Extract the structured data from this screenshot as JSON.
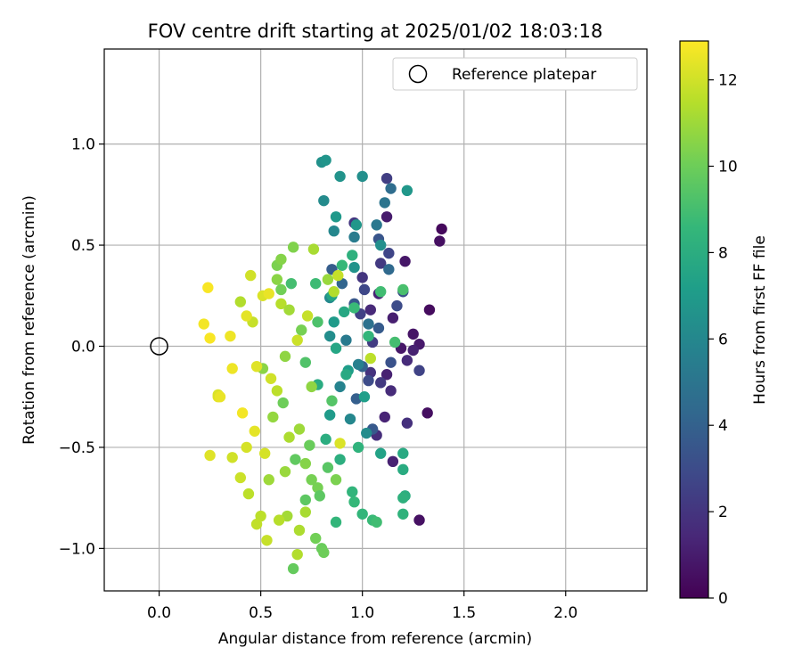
{
  "chart_data": {
    "type": "scatter",
    "title": "FOV centre drift starting at 2025/01/02 18:03:18",
    "xlabel": "Angular distance from reference (arcmin)",
    "ylabel": "Rotation from reference (arcmin)",
    "xlim": [
      -0.27,
      2.4
    ],
    "ylim": [
      -1.21,
      1.47
    ],
    "xticks": [
      0.0,
      0.5,
      1.0,
      1.5,
      2.0
    ],
    "xtick_labels": [
      "0.0",
      "0.5",
      "1.0",
      "1.5",
      "2.0"
    ],
    "yticks": [
      -1.0,
      -0.5,
      0.0,
      0.5,
      1.0
    ],
    "ytick_labels": [
      "−1.0",
      "−0.5",
      "0.0",
      "0.5",
      "1.0"
    ],
    "grid": true,
    "legend": {
      "position": "top-right",
      "entries": [
        "Reference platepar"
      ]
    },
    "reference_point": {
      "x": 0.0,
      "y": 0.0,
      "label": "Reference platepar",
      "marker": "open-circle"
    },
    "colorbar": {
      "label": "Hours from first FF file",
      "range": [
        0,
        12.9
      ],
      "ticks": [
        0,
        2,
        4,
        6,
        8,
        10,
        12
      ],
      "tick_labels": [
        "0",
        "2",
        "4",
        "6",
        "8",
        "10",
        "12"
      ],
      "colormap": "viridis",
      "stops": [
        "#440154",
        "#482878",
        "#3e4989",
        "#31688e",
        "#26828e",
        "#1f9e89",
        "#35b779",
        "#6ece58",
        "#b5de2b",
        "#fde725"
      ]
    },
    "points": [
      [
        1.39,
        0.58,
        0.3
      ],
      [
        1.38,
        0.52,
        0.5
      ],
      [
        1.33,
        0.18,
        0.4
      ],
      [
        1.32,
        -0.33,
        0.5
      ],
      [
        1.28,
        -0.86,
        0.6
      ],
      [
        1.25,
        0.06,
        0.7
      ],
      [
        1.21,
        0.42,
        0.8
      ],
      [
        1.28,
        0.01,
        0.9
      ],
      [
        1.12,
        0.64,
        1.0
      ],
      [
        1.15,
        0.14,
        1.1
      ],
      [
        1.19,
        -0.01,
        0.8
      ],
      [
        1.25,
        -0.02,
        1.2
      ],
      [
        1.22,
        -0.07,
        1.6
      ],
      [
        1.08,
        0.26,
        1.3
      ],
      [
        1.04,
        0.18,
        1.5
      ],
      [
        1.12,
        -0.14,
        1.2
      ],
      [
        1.14,
        -0.22,
        1.6
      ],
      [
        1.11,
        -0.35,
        1.3
      ],
      [
        1.07,
        -0.44,
        1.7
      ],
      [
        1.15,
        -0.57,
        1.2
      ],
      [
        1.04,
        -0.13,
        1.9
      ],
      [
        1.0,
        0.34,
        2.0
      ],
      [
        1.09,
        0.41,
        2.2
      ],
      [
        0.96,
        0.61,
        2.1
      ],
      [
        1.12,
        0.83,
        2.4
      ],
      [
        0.99,
        0.16,
        2.5
      ],
      [
        1.05,
        0.02,
        2.3
      ],
      [
        1.28,
        -0.12,
        2.6
      ],
      [
        1.09,
        -0.18,
        2.2
      ],
      [
        1.13,
        0.46,
        2.7
      ],
      [
        1.01,
        0.28,
        2.8
      ],
      [
        1.17,
        0.2,
        3.0
      ],
      [
        1.2,
        0.27,
        3.2
      ],
      [
        1.03,
        -0.17,
        3.0
      ],
      [
        1.14,
        -0.08,
        3.3
      ],
      [
        0.96,
        0.21,
        3.5
      ],
      [
        1.08,
        0.53,
        3.4
      ],
      [
        1.22,
        -0.38,
        1.8
      ],
      [
        1.05,
        -0.41,
        3.6
      ],
      [
        0.97,
        -0.26,
        3.9
      ],
      [
        0.85,
        0.38,
        3.8
      ],
      [
        1.08,
        0.09,
        3.7
      ],
      [
        1.0,
        -0.1,
        4.0
      ],
      [
        0.9,
        0.31,
        4.2
      ],
      [
        1.13,
        0.38,
        4.4
      ],
      [
        1.14,
        0.78,
        4.6
      ],
      [
        1.11,
        0.71,
        5.0
      ],
      [
        1.07,
        0.6,
        5.2
      ],
      [
        0.96,
        0.54,
        5.4
      ],
      [
        1.03,
        0.11,
        4.8
      ],
      [
        0.92,
        0.03,
        5.3
      ],
      [
        0.98,
        -0.09,
        5.6
      ],
      [
        0.89,
        -0.2,
        5.8
      ],
      [
        0.94,
        -0.36,
        6.0
      ],
      [
        1.02,
        -0.43,
        6.2
      ],
      [
        0.84,
        0.24,
        6.1
      ],
      [
        0.86,
        0.57,
        6.0
      ],
      [
        0.81,
        0.72,
        6.2
      ],
      [
        0.8,
        0.91,
        6.5
      ],
      [
        0.82,
        0.92,
        6.7
      ],
      [
        0.89,
        0.84,
        6.6
      ],
      [
        1.0,
        0.84,
        6.4
      ],
      [
        1.22,
        0.77,
        6.8
      ],
      [
        0.87,
        0.64,
        6.9
      ],
      [
        0.97,
        0.6,
        6.8
      ],
      [
        0.84,
        0.05,
        6.3
      ],
      [
        0.96,
        0.39,
        6.6
      ],
      [
        1.09,
        0.5,
        6.4
      ],
      [
        0.86,
        0.12,
        7.0
      ],
      [
        0.93,
        -0.12,
        7.1
      ],
      [
        1.01,
        -0.25,
        7.2
      ],
      [
        0.84,
        -0.34,
        7.0
      ],
      [
        1.09,
        -0.53,
        7.4
      ],
      [
        1.2,
        -0.53,
        7.8
      ],
      [
        1.2,
        -0.61,
        7.9
      ],
      [
        1.21,
        -0.74,
        8.0
      ],
      [
        1.2,
        -0.75,
        8.2
      ],
      [
        1.2,
        -0.83,
        8.3
      ],
      [
        0.95,
        -0.72,
        8.4
      ],
      [
        0.87,
        -0.87,
        8.5
      ],
      [
        1.0,
        -0.83,
        8.5
      ],
      [
        1.05,
        -0.86,
        8.7
      ],
      [
        1.07,
        -0.87,
        8.9
      ],
      [
        0.96,
        -0.77,
        8.6
      ],
      [
        0.85,
        0.25,
        7.5
      ],
      [
        0.91,
        0.17,
        7.7
      ],
      [
        0.87,
        -0.01,
        7.6
      ],
      [
        0.92,
        -0.14,
        7.8
      ],
      [
        0.78,
        -0.19,
        7.9
      ],
      [
        0.82,
        -0.46,
        8.0
      ],
      [
        0.89,
        -0.56,
        8.1
      ],
      [
        0.98,
        -0.5,
        8.3
      ],
      [
        0.95,
        0.45,
        8.2
      ],
      [
        0.9,
        0.4,
        8.6
      ],
      [
        0.96,
        0.19,
        8.7
      ],
      [
        1.03,
        0.05,
        8.5
      ],
      [
        1.09,
        0.27,
        8.9
      ],
      [
        1.16,
        0.02,
        9.0
      ],
      [
        1.2,
        0.28,
        9.1
      ],
      [
        0.77,
        0.31,
        8.8
      ],
      [
        0.65,
        0.31,
        9.0
      ],
      [
        0.78,
        0.12,
        9.2
      ],
      [
        0.72,
        -0.08,
        9.3
      ],
      [
        0.85,
        -0.27,
        9.4
      ],
      [
        0.83,
        -0.6,
        9.5
      ],
      [
        0.72,
        -0.76,
        9.6
      ],
      [
        0.66,
        -1.1,
        9.8
      ],
      [
        0.8,
        -1.0,
        9.9
      ],
      [
        0.81,
        -1.02,
        10.0
      ],
      [
        0.77,
        -0.95,
        10.1
      ],
      [
        0.78,
        -0.7,
        10.2
      ],
      [
        0.87,
        -0.66,
        10.3
      ],
      [
        0.67,
        -0.56,
        9.7
      ],
      [
        0.74,
        -0.49,
        9.9
      ],
      [
        0.61,
        -0.28,
        10.0
      ],
      [
        0.6,
        0.28,
        10.1
      ],
      [
        0.58,
        0.4,
        10.3
      ],
      [
        0.6,
        0.43,
        10.5
      ],
      [
        0.66,
        0.49,
        10.4
      ],
      [
        0.58,
        0.33,
        10.6
      ],
      [
        0.7,
        0.08,
        10.2
      ],
      [
        0.62,
        -0.05,
        10.7
      ],
      [
        0.51,
        -0.11,
        10.6
      ],
      [
        0.56,
        -0.35,
        10.8
      ],
      [
        0.62,
        -0.62,
        10.9
      ],
      [
        0.54,
        -0.66,
        11.0
      ],
      [
        0.63,
        -0.84,
        11.1
      ],
      [
        0.72,
        -0.82,
        11.2
      ],
      [
        0.69,
        -0.91,
        11.3
      ],
      [
        0.68,
        -1.03,
        11.4
      ],
      [
        0.59,
        -0.86,
        11.5
      ],
      [
        0.5,
        -0.84,
        11.6
      ],
      [
        0.48,
        -0.88,
        11.7
      ],
      [
        0.53,
        -0.96,
        11.8
      ],
      [
        0.44,
        -0.73,
        11.6
      ],
      [
        0.4,
        -0.65,
        11.9
      ],
      [
        0.36,
        -0.55,
        12.0
      ],
      [
        0.43,
        -0.5,
        12.1
      ],
      [
        0.25,
        -0.54,
        12.3
      ],
      [
        0.29,
        -0.25,
        12.4
      ],
      [
        0.29,
        -0.24,
        12.2
      ],
      [
        0.3,
        -0.25,
        12.5
      ],
      [
        0.36,
        -0.11,
        12.6
      ],
      [
        0.22,
        0.11,
        12.7
      ],
      [
        0.25,
        0.04,
        12.8
      ],
      [
        0.24,
        0.29,
        12.8
      ],
      [
        0.35,
        0.05,
        12.6
      ],
      [
        0.45,
        0.35,
        12.0
      ],
      [
        0.4,
        0.22,
        11.4
      ],
      [
        0.46,
        0.12,
        11.8
      ],
      [
        0.43,
        0.15,
        12.4
      ],
      [
        0.51,
        0.25,
        12.2
      ],
      [
        0.54,
        0.26,
        12.5
      ],
      [
        0.6,
        0.21,
        11.5
      ],
      [
        0.48,
        -0.1,
        12.3
      ],
      [
        0.55,
        -0.16,
        12.0
      ],
      [
        0.58,
        -0.22,
        11.6
      ],
      [
        0.41,
        -0.33,
        12.7
      ],
      [
        0.47,
        -0.42,
        12.4
      ],
      [
        0.52,
        -0.53,
        12.1
      ],
      [
        0.64,
        -0.45,
        11.3
      ],
      [
        0.69,
        -0.41,
        11.0
      ],
      [
        0.72,
        -0.58,
        10.5
      ],
      [
        0.75,
        -0.66,
        10.2
      ],
      [
        0.79,
        -0.74,
        9.6
      ],
      [
        0.88,
        0.35,
        11.8
      ],
      [
        0.83,
        0.33,
        10.9
      ],
      [
        0.86,
        0.27,
        11.4
      ],
      [
        1.04,
        -0.06,
        11.6
      ],
      [
        0.89,
        -0.48,
        12.2
      ],
      [
        0.76,
        0.48,
        11.2
      ],
      [
        0.73,
        0.15,
        11.8
      ],
      [
        0.68,
        0.03,
        11.9
      ],
      [
        0.64,
        0.18,
        11.1
      ],
      [
        0.75,
        -0.2,
        10.7
      ]
    ]
  }
}
